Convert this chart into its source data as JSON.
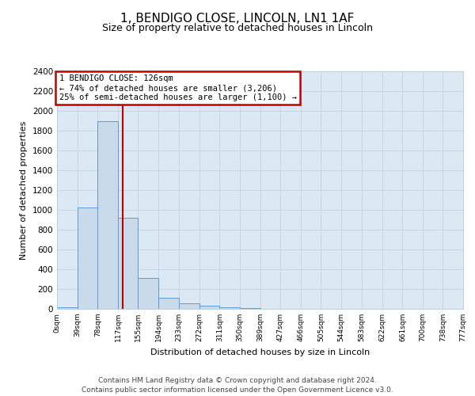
{
  "title": "1, BENDIGO CLOSE, LINCOLN, LN1 1AF",
  "subtitle": "Size of property relative to detached houses in Lincoln",
  "xlabel": "Distribution of detached houses by size in Lincoln",
  "ylabel": "Number of detached properties",
  "bin_edges": [
    0,
    39,
    78,
    117,
    155,
    194,
    233,
    272,
    311,
    350,
    389,
    427,
    466,
    505,
    544,
    583,
    622,
    661,
    700,
    738,
    777
  ],
  "bin_heights": [
    20,
    1025,
    1900,
    920,
    315,
    110,
    55,
    30,
    20,
    5,
    0,
    0,
    0,
    0,
    0,
    0,
    0,
    0,
    0,
    0
  ],
  "bar_facecolor": "#c9daea",
  "bar_edgecolor": "#5b9bd5",
  "property_size": 126,
  "vline_color": "#c00000",
  "ylim": [
    0,
    2400
  ],
  "yticks": [
    0,
    200,
    400,
    600,
    800,
    1000,
    1200,
    1400,
    1600,
    1800,
    2000,
    2200,
    2400
  ],
  "annotation_line1": "1 BENDIGO CLOSE: 126sqm",
  "annotation_line2": "← 74% of detached houses are smaller (3,206)",
  "annotation_line3": "25% of semi-detached houses are larger (1,100) →",
  "annotation_box_edgecolor": "#c00000",
  "annotation_box_facecolor": "#ffffff",
  "background_color": "#dce9f5",
  "grid_color": "#b8cfe0",
  "footer_line1": "Contains HM Land Registry data © Crown copyright and database right 2024.",
  "footer_line2": "Contains public sector information licensed under the Open Government Licence v3.0.",
  "tick_labels": [
    "0sqm",
    "39sqm",
    "78sqm",
    "117sqm",
    "155sqm",
    "194sqm",
    "233sqm",
    "272sqm",
    "311sqm",
    "350sqm",
    "389sqm",
    "427sqm",
    "466sqm",
    "505sqm",
    "544sqm",
    "583sqm",
    "622sqm",
    "661sqm",
    "700sqm",
    "738sqm",
    "777sqm"
  ]
}
